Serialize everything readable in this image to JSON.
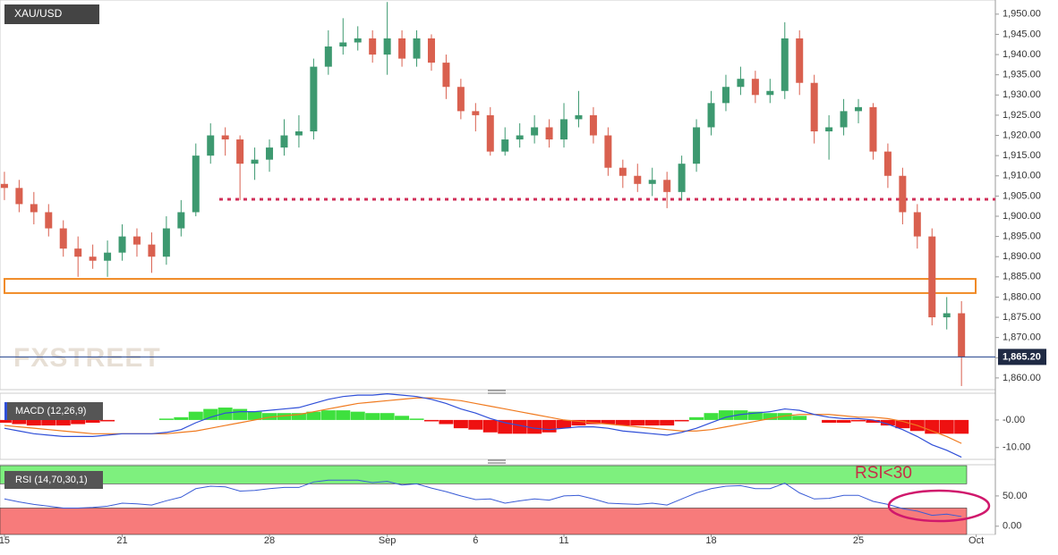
{
  "chart_data": [
    {
      "type": "candlestick",
      "symbol": "XAU/USD",
      "watermark": "FXSTREET",
      "open": [
        1908,
        1907,
        1903,
        1901,
        1897,
        1892,
        1890,
        1889,
        1891,
        1895,
        1893,
        1890,
        1897,
        1901,
        1915,
        1920,
        1919,
        1913,
        1914,
        1917,
        1920,
        1921,
        1937,
        1942,
        1943,
        1944,
        1940,
        1944,
        1939,
        1944,
        1938,
        1932,
        1926,
        1925,
        1916,
        1919,
        1920,
        1922,
        1919,
        1924,
        1925,
        1920,
        1912,
        1910,
        1908,
        1909,
        1906,
        1913,
        1922,
        1928,
        1932,
        1934,
        1930,
        1931,
        1944,
        1933,
        1921,
        1922,
        1926,
        1927,
        1916,
        1910,
        1901,
        1895,
        1875,
        1876
      ],
      "high": [
        1911,
        1909,
        1906,
        1903,
        1899,
        1895,
        1893,
        1894,
        1898,
        1897,
        1896,
        1900,
        1904,
        1918,
        1923,
        1922,
        1920,
        1917,
        1919,
        1924,
        1925,
        1939,
        1946,
        1949,
        1947,
        1946,
        1953,
        1946,
        1946,
        1945,
        1940,
        1934,
        1928,
        1927,
        1922,
        1923,
        1925,
        1924,
        1928,
        1931,
        1927,
        1922,
        1914,
        1913,
        1912,
        1911,
        1915,
        1924,
        1931,
        1935,
        1937,
        1936,
        1934,
        1948,
        1946,
        1935,
        1925,
        1929,
        1929,
        1928,
        1918,
        1912,
        1903,
        1897,
        1880,
        1879
      ],
      "low": [
        1904,
        1901,
        1898,
        1895,
        1890,
        1885,
        1887,
        1885,
        1889,
        1890,
        1886,
        1888,
        1895,
        1900,
        1913,
        1915,
        1904,
        1909,
        1911,
        1915,
        1917,
        1919,
        1935,
        1940,
        1941,
        1938,
        1935,
        1937,
        1937,
        1936,
        1929,
        1924,
        1921,
        1915,
        1915,
        1917,
        1918,
        1917,
        1917,
        1922,
        1918,
        1910,
        1907,
        1906,
        1905,
        1902,
        1904,
        1911,
        1920,
        1926,
        1930,
        1928,
        1928,
        1929,
        1930,
        1918,
        1914,
        1920,
        1923,
        1914,
        1907,
        1898,
        1892,
        1873,
        1872,
        1858
      ],
      "close": [
        1907,
        1903,
        1901,
        1897,
        1892,
        1890,
        1889,
        1891,
        1895,
        1893,
        1890,
        1897,
        1901,
        1915,
        1920,
        1919,
        1913,
        1914,
        1917,
        1920,
        1921,
        1937,
        1942,
        1943,
        1944,
        1940,
        1944,
        1939,
        1944,
        1938,
        1932,
        1926,
        1925,
        1916,
        1919,
        1920,
        1922,
        1919,
        1924,
        1925,
        1920,
        1912,
        1910,
        1908,
        1909,
        1906,
        1913,
        1922,
        1928,
        1932,
        1934,
        1930,
        1931,
        1944,
        1933,
        1921,
        1922,
        1926,
        1927,
        1916,
        1910,
        1901,
        1895,
        1875,
        1876,
        1865.2
      ],
      "up_color": "#3d9970",
      "down_color": "#d9604f",
      "last_price": {
        "value": 1865.2,
        "label": "1,865.20"
      },
      "resistance": 1904.2,
      "zone": [
        1881,
        1884.5
      ],
      "ylim": [
        1857.1,
        1953.5
      ],
      "xlim": [
        -0.3,
        67.3
      ],
      "yticks": [
        {
          "value": 1860,
          "label": "1,860.00"
        },
        {
          "value": 1865,
          "label": "1,865.00"
        },
        {
          "value": 1870,
          "label": "1,870.00"
        },
        {
          "value": 1875,
          "label": "1,875.00"
        },
        {
          "value": 1880,
          "label": "1,880.00"
        },
        {
          "value": 1885,
          "label": "1,885.00"
        },
        {
          "value": 1890,
          "label": "1,890.00"
        },
        {
          "value": 1895,
          "label": "1,895.00"
        },
        {
          "value": 1900,
          "label": "1,900.00"
        },
        {
          "value": 1905,
          "label": "1,905.00"
        },
        {
          "value": 1910,
          "label": "1,910.00"
        },
        {
          "value": 1915,
          "label": "1,915.00"
        },
        {
          "value": 1920,
          "label": "1,920.00"
        },
        {
          "value": 1925,
          "label": "1,925.00"
        },
        {
          "value": 1930,
          "label": "1,930.00"
        },
        {
          "value": 1935,
          "label": "1,935.00"
        },
        {
          "value": 1940,
          "label": "1,940.00"
        },
        {
          "value": 1945,
          "label": "1,945.00"
        },
        {
          "value": 1950,
          "label": "1,950.00"
        }
      ],
      "xticks": [
        {
          "value": 0,
          "label": "15"
        },
        {
          "value": 8,
          "label": "21"
        },
        {
          "value": 18,
          "label": "28"
        },
        {
          "value": 26,
          "label": "Sep"
        },
        {
          "value": 32,
          "label": "6"
        },
        {
          "value": 38,
          "label": "11"
        },
        {
          "value": 48,
          "label": "18"
        },
        {
          "value": 58,
          "label": "25"
        },
        {
          "value": 66,
          "label": "Oct"
        }
      ]
    },
    {
      "type": "macd",
      "title": "MACD (12,26,9)",
      "macd": {
        "color": "#2f4fd8",
        "values": [
          -3,
          -4,
          -5,
          -5.5,
          -6,
          -6,
          -6,
          -5.5,
          -5,
          -5,
          -5,
          -4.5,
          -3.5,
          -1,
          1,
          2.5,
          3,
          3,
          3.5,
          4,
          4.5,
          6,
          7.5,
          8.5,
          9,
          9,
          9.5,
          9,
          8.5,
          7.5,
          6,
          4,
          2.5,
          0.5,
          -1,
          -2,
          -3,
          -3.5,
          -3,
          -2.5,
          -2.5,
          -3,
          -4,
          -4.5,
          -5,
          -5.5,
          -4.5,
          -3,
          -1,
          1,
          2,
          2.5,
          3,
          4,
          3.5,
          2,
          1,
          0.5,
          0.5,
          0,
          -1.5,
          -3.5,
          -6,
          -9,
          -11,
          -13.5
        ]
      },
      "signal": {
        "color": "#f07a1f",
        "values": [
          -2,
          -2.5,
          -3,
          -3.5,
          -4,
          -4.5,
          -5,
          -5,
          -5,
          -5,
          -5,
          -5,
          -4.5,
          -4,
          -3,
          -2,
          -1,
          0,
          1,
          1.5,
          2,
          3,
          4,
          5,
          6,
          6.5,
          7,
          7.5,
          8,
          8,
          7.5,
          7,
          6,
          5,
          4,
          3,
          2,
          1,
          0,
          -0.5,
          -1,
          -1.5,
          -2,
          -2.5,
          -3,
          -3.5,
          -4,
          -4,
          -3.5,
          -2.5,
          -1.5,
          -0.5,
          0.5,
          1.5,
          2,
          2,
          2,
          1.5,
          1,
          1,
          0.5,
          -0.5,
          -2,
          -4,
          -6,
          -8.5
        ]
      },
      "histogram": {
        "up_color": "#3ee03e",
        "down_color": "#ee1111",
        "values": [
          -1,
          -1.5,
          -2,
          -2,
          -2,
          -1.5,
          -1,
          -0.5,
          0,
          0,
          0,
          0.5,
          1,
          3,
          4,
          4.5,
          4,
          3,
          2.5,
          2.5,
          2.5,
          3,
          3.5,
          3.5,
          3,
          2.5,
          2.5,
          1.5,
          0.5,
          -0.5,
          -1.5,
          -3,
          -3.5,
          -4.5,
          -5,
          -5,
          -5,
          -4.5,
          -3,
          -2,
          -1.5,
          -1.5,
          -2,
          -2,
          -2,
          -2,
          -0.5,
          1,
          2.5,
          3.5,
          3.5,
          3,
          2.5,
          2.5,
          1.5,
          0,
          -1,
          -1,
          -0.5,
          -1,
          -2,
          -3,
          -4,
          -5,
          -5,
          -5
        ]
      },
      "ylim": [
        -14.3,
        9.7
      ],
      "yticks": [
        {
          "value": 0,
          "label": "-0.00"
        },
        {
          "value": -10,
          "label": "-10.00"
        }
      ]
    },
    {
      "type": "rsi",
      "title": "RSI (14,70,30,1)",
      "annotation": "RSI<30",
      "color": "#3a5cd6",
      "values": [
        45,
        40,
        36,
        33,
        30,
        30,
        31,
        33,
        38,
        37,
        35,
        42,
        48,
        62,
        66,
        65,
        58,
        59,
        62,
        64,
        64,
        73,
        76,
        76,
        76,
        72,
        74,
        68,
        70,
        63,
        57,
        50,
        44,
        45,
        38,
        42,
        45,
        43,
        50,
        51,
        45,
        38,
        37,
        36,
        38,
        35,
        45,
        55,
        62,
        66,
        67,
        62,
        62,
        71,
        55,
        45,
        46,
        51,
        51,
        41,
        36,
        29,
        25,
        18,
        20,
        16
      ],
      "overbought": 70,
      "oversold": 30,
      "zone_top": 100,
      "overbought_color": "#7ef07e",
      "oversold_color": "#f77b7b",
      "ylim": [
        -13.6,
        101.5
      ],
      "yticks": [
        {
          "value": 50,
          "label": "50.00"
        },
        {
          "value": 0,
          "label": "0.00"
        }
      ]
    }
  ]
}
